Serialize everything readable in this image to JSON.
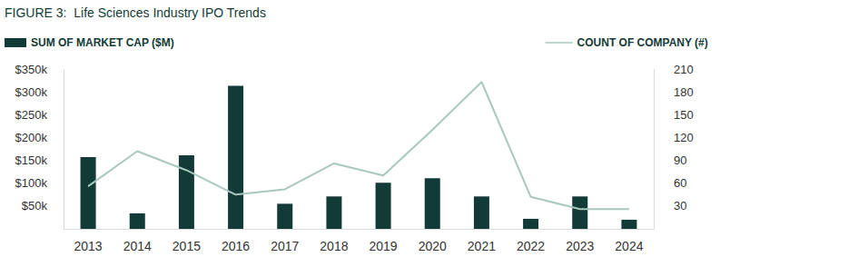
{
  "chart_data": {
    "type": "bar",
    "title": "FIGURE 3:  Life Sciences Industry IPO Trends",
    "categories": [
      "2013",
      "2014",
      "2015",
      "2016",
      "2017",
      "2018",
      "2019",
      "2020",
      "2021",
      "2022",
      "2023",
      "2024"
    ],
    "series": [
      {
        "name": "SUM OF MARKET CAP ($M)",
        "type": "bar",
        "color": "#123b37",
        "values": [
          157000,
          34000,
          161000,
          313000,
          55000,
          71000,
          101000,
          111000,
          71000,
          22000,
          71000,
          20000
        ]
      },
      {
        "name": "COUNT OF COMPANY (#)",
        "type": "line",
        "color": "#a8c8be",
        "axis": "y2",
        "values": [
          56,
          102,
          77,
          45,
          52,
          86,
          70,
          130,
          193,
          42,
          26,
          26
        ]
      }
    ],
    "ylim": [
      0,
      350000
    ],
    "yticks": [
      {
        "value": 50000,
        "label": "$50k"
      },
      {
        "value": 100000,
        "label": "$100k"
      },
      {
        "value": 150000,
        "label": "$150k"
      },
      {
        "value": 200000,
        "label": "$200k"
      },
      {
        "value": 250000,
        "label": "$250k"
      },
      {
        "value": 300000,
        "label": "$300k"
      },
      {
        "value": 350000,
        "label": "$350k"
      }
    ],
    "y2lim": [
      0,
      210
    ],
    "y2ticks": [
      30,
      60,
      90,
      120,
      150,
      180,
      210
    ],
    "grid": false
  }
}
